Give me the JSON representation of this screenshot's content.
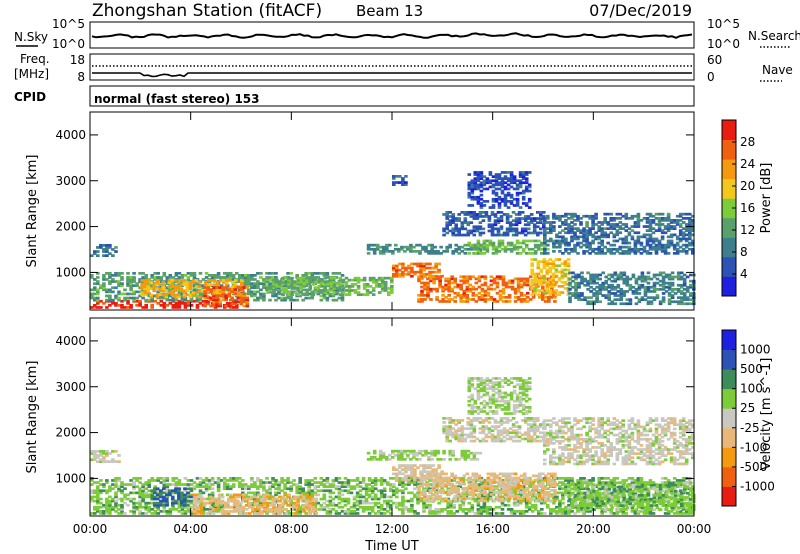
{
  "header": {
    "station": "Zhongshan Station (fitACF)",
    "beam": "Beam 13",
    "date": "07/Dec/2019"
  },
  "summary": {
    "nsky_label": "N.Sky",
    "nsearch_label": "N.Search",
    "freq_label": "Freq.",
    "freq_unit": "[MHz]",
    "nave_label": "Nave",
    "cpid_label": "CPID",
    "cpid_text": "normal (fast stereo) 153",
    "noise_ticks": [
      "10^5",
      "10^0"
    ],
    "noise_right_ticks": [
      "10^5",
      "10^0"
    ],
    "freq_ticks": [
      "18",
      "8"
    ],
    "nave_ticks": [
      "60",
      "0"
    ]
  },
  "colors": {
    "power_scale": [
      "#1f1fe0",
      "#2b52b4",
      "#3d7f8c",
      "#5aa06a",
      "#7ccc3a",
      "#f4c81a",
      "#f59a0e",
      "#f06010",
      "#e81c10"
    ],
    "velocity_scale": [
      "#e81c10",
      "#f06010",
      "#f59a0e",
      "#e8b87a",
      "#c8c8c0",
      "#7ccc3a",
      "#3d8c5a",
      "#2b52b4",
      "#1f1fe0"
    ]
  },
  "chart_data": [
    {
      "type": "heatmap",
      "name": "power-panel",
      "ylabel": "Slant Range [km]",
      "xlabel": "",
      "y_ticks": [
        "4000",
        "3000",
        "2000",
        "1000"
      ],
      "ylim": [
        180,
        4500
      ],
      "colorbar": {
        "label": "Power [dB]",
        "ticks": [
          "28",
          "24",
          "20",
          "16",
          "12",
          "8",
          "4"
        ],
        "range": [
          0,
          32
        ]
      },
      "regions": [
        {
          "t0": 0.0,
          "t1": 5.8,
          "r0": 220,
          "r1": 380,
          "v": 30
        },
        {
          "t0": 0.0,
          "t1": 10.0,
          "r0": 380,
          "r1": 1000,
          "v": 12
        },
        {
          "t0": 2.0,
          "t1": 6.0,
          "r0": 450,
          "r1": 850,
          "v": 22
        },
        {
          "t0": 4.5,
          "t1": 6.2,
          "r0": 250,
          "r1": 700,
          "v": 27
        },
        {
          "t0": 7.0,
          "t1": 12.0,
          "r0": 500,
          "r1": 900,
          "v": 14
        },
        {
          "t0": 0.0,
          "t1": 1.0,
          "r0": 1350,
          "r1": 1600,
          "v": 8
        },
        {
          "t0": 11.0,
          "t1": 15.5,
          "r0": 1400,
          "r1": 1600,
          "v": 10
        },
        {
          "t0": 15.0,
          "t1": 18.2,
          "r0": 1400,
          "r1": 1700,
          "v": 14
        },
        {
          "t0": 12.0,
          "t1": 14.0,
          "r0": 900,
          "r1": 1200,
          "v": 26
        },
        {
          "t0": 13.0,
          "t1": 18.5,
          "r0": 350,
          "r1": 900,
          "v": 26
        },
        {
          "t0": 17.5,
          "t1": 19.0,
          "r0": 500,
          "r1": 1300,
          "v": 20
        },
        {
          "t0": 19.0,
          "t1": 24.0,
          "r0": 300,
          "r1": 1000,
          "v": 9
        },
        {
          "t0": 18.0,
          "t1": 24.0,
          "r0": 1400,
          "r1": 2300,
          "v": 8
        },
        {
          "t0": 14.0,
          "t1": 18.0,
          "r0": 1800,
          "r1": 2300,
          "v": 6
        },
        {
          "t0": 15.0,
          "t1": 17.5,
          "r0": 2400,
          "r1": 3200,
          "v": 5
        },
        {
          "t0": 12.0,
          "t1": 12.5,
          "r0": 2900,
          "r1": 3100,
          "v": 6
        }
      ]
    },
    {
      "type": "heatmap",
      "name": "velocity-panel",
      "ylabel": "Slant Range [km]",
      "xlabel": "Time UT",
      "y_ticks": [
        "4000",
        "3000",
        "2000",
        "1000"
      ],
      "ylim": [
        180,
        4500
      ],
      "x_ticks": [
        "00:00",
        "04:00",
        "08:00",
        "12:00",
        "16:00",
        "20:00",
        "00:00"
      ],
      "xlim": [
        0,
        24
      ],
      "colorbar": {
        "label": "Velocity [m s^-1]",
        "ticks": [
          "1000",
          "500",
          "100",
          "25",
          "-25",
          "-100",
          "-500",
          "-1000"
        ],
        "range": [
          -1250,
          1250
        ]
      },
      "regions": [
        {
          "t0": 0.0,
          "t1": 24.0,
          "r0": 220,
          "r1": 1000,
          "v": 300
        },
        {
          "t0": 4.0,
          "t1": 9.0,
          "r0": 220,
          "r1": 650,
          "v": -300
        },
        {
          "t0": 2.5,
          "t1": 4.0,
          "r0": 400,
          "r1": 800,
          "v": 700
        },
        {
          "t0": 0.0,
          "t1": 1.2,
          "r0": 1350,
          "r1": 1600,
          "v": 0
        },
        {
          "t0": 11.0,
          "t1": 15.5,
          "r0": 1400,
          "r1": 1600,
          "v": 150
        },
        {
          "t0": 13.0,
          "t1": 18.5,
          "r0": 500,
          "r1": 1100,
          "v": -250
        },
        {
          "t0": 12.0,
          "t1": 14.0,
          "r0": 950,
          "r1": 1300,
          "v": -150
        },
        {
          "t0": 18.0,
          "t1": 24.0,
          "r0": 1300,
          "r1": 2300,
          "v": 0
        },
        {
          "t0": 19.0,
          "t1": 24.0,
          "r0": 300,
          "r1": 900,
          "v": 300
        },
        {
          "t0": 15.0,
          "t1": 17.5,
          "r0": 2400,
          "r1": 3200,
          "v": 150
        },
        {
          "t0": 14.0,
          "t1": 18.0,
          "r0": 1800,
          "r1": 2300,
          "v": 0
        }
      ]
    }
  ]
}
